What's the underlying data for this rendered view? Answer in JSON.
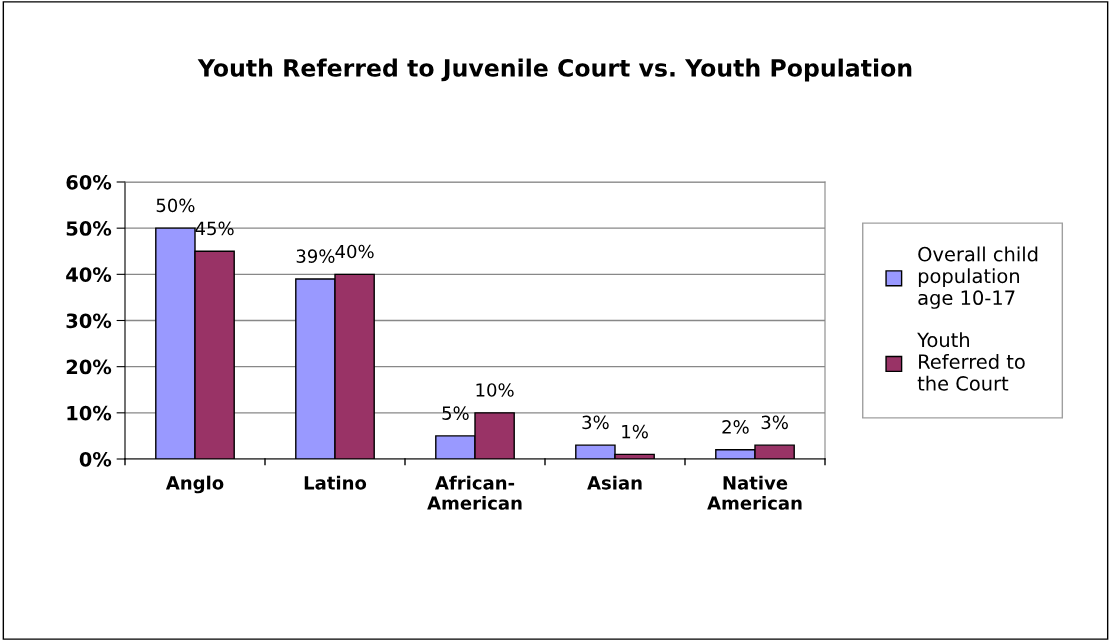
{
  "chart_data": {
    "type": "bar",
    "title": "Youth Referred to Juvenile Court vs. Youth Population",
    "categories": [
      "Anglo",
      "Latino",
      "African-\nAmerican",
      "Asian",
      "Native\nAmerican"
    ],
    "series": [
      {
        "name": "Overall child\npopulation\nage 10-17",
        "color": "#9999ff",
        "values": [
          50,
          39,
          5,
          3,
          2
        ],
        "value_labels": [
          "50%",
          "39%",
          "5%",
          "3%",
          "2%"
        ]
      },
      {
        "name": "Youth\nReferred to\nthe Court",
        "color": "#993366",
        "values": [
          45,
          40,
          10,
          1,
          3
        ],
        "value_labels": [
          "45%",
          "40%",
          "10%",
          "1%",
          "3%"
        ]
      }
    ],
    "ylim": [
      0,
      60
    ],
    "yticks": [
      {
        "value": 0,
        "label": "0%"
      },
      {
        "value": 10,
        "label": "10%"
      },
      {
        "value": 20,
        "label": "20%"
      },
      {
        "value": 30,
        "label": "30%"
      },
      {
        "value": 40,
        "label": "40%"
      },
      {
        "value": 50,
        "label": "50%"
      },
      {
        "value": 60,
        "label": "60%"
      }
    ],
    "grid": "y",
    "legend": "right"
  }
}
